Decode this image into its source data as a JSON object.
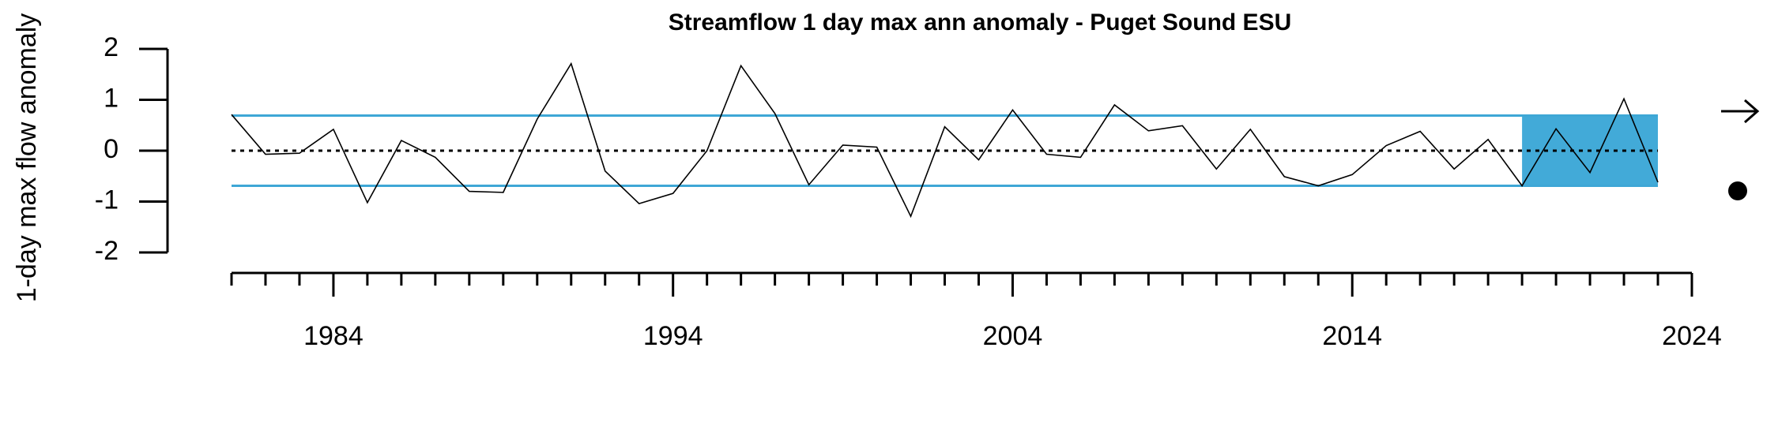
{
  "chart_data": {
    "type": "line",
    "title": "Streamflow 1 day max ann anomaly - Puget Sound ESU",
    "y_label": "1-day max flow anomaly",
    "x": [
      1981,
      1982,
      1983,
      1984,
      1985,
      1986,
      1987,
      1988,
      1989,
      1990,
      1991,
      1992,
      1993,
      1994,
      1995,
      1996,
      1997,
      1998,
      1999,
      2000,
      2001,
      2002,
      2003,
      2004,
      2005,
      2006,
      2007,
      2008,
      2009,
      2010,
      2011,
      2012,
      2013,
      2014,
      2015,
      2016,
      2017,
      2018,
      2019,
      2020,
      2021,
      2022,
      2023
    ],
    "series": [
      {
        "color": "#000000",
        "values": [
          0.71,
          -0.07,
          -0.05,
          0.42,
          -1.02,
          0.2,
          -0.13,
          -0.8,
          -0.82,
          0.62,
          1.71,
          -0.4,
          -1.04,
          -0.84,
          0.0,
          1.67,
          0.73,
          -0.67,
          0.11,
          0.07,
          -1.29,
          0.47,
          -0.18,
          0.8,
          -0.07,
          -0.13,
          0.9,
          0.39,
          0.49,
          -0.36,
          0.42,
          -0.51,
          -0.69,
          -0.47,
          0.1,
          0.38,
          -0.36,
          0.22,
          -0.69,
          0.43,
          -0.43,
          1.02,
          -0.62
        ]
      }
    ],
    "mean": 0,
    "sd_band": [
      -0.69,
      0.69
    ],
    "band_color": "#3ea7d6",
    "shade_x": [
      2019,
      2023
    ],
    "shade_color": "#42aad8",
    "xlim": [
      1981,
      2024
    ],
    "ylim": [
      -2,
      2
    ],
    "yticks": [
      -2,
      -1,
      0,
      1,
      2
    ],
    "xticks": [
      1984,
      1994,
      2004,
      2014,
      2024
    ],
    "xminorticks": [
      1981,
      1982,
      1983,
      1985,
      1986,
      1987,
      1988,
      1989,
      1990,
      1991,
      1992,
      1993,
      1995,
      1996,
      1997,
      1998,
      1999,
      2000,
      2001,
      2002,
      2003,
      2005,
      2006,
      2007,
      2008,
      2009,
      2010,
      2011,
      2012,
      2013,
      2015,
      2016,
      2017,
      2018,
      2019,
      2020,
      2021,
      2022,
      2023
    ]
  }
}
